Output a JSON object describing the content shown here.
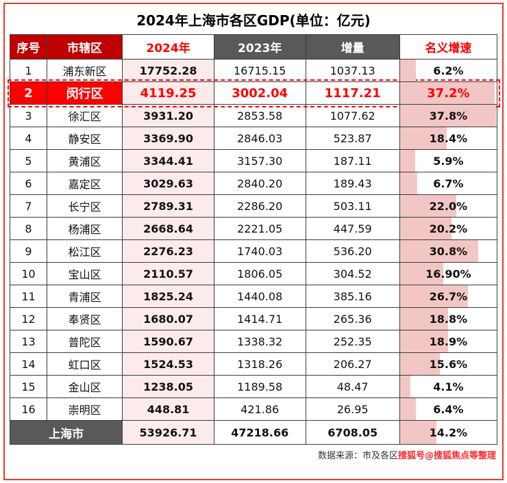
{
  "title": "2024年上海市各区GDP(单位：亿元)",
  "chart_data": {
    "type": "table",
    "title": "2024年上海市各区GDP(单位：亿元)",
    "columns": [
      "序号",
      "市辖区",
      "2024年",
      "2023年",
      "增量",
      "名义增速"
    ],
    "growth_bar_max": 38,
    "rows": [
      {
        "rank": "1",
        "district": "浦东新区",
        "gdp_2024": "17752.28",
        "gdp_2023": "16715.15",
        "delta": "1037.13",
        "growth": "6.2%",
        "growth_value": 6.2,
        "highlight": false
      },
      {
        "rank": "2",
        "district": "闵行区",
        "gdp_2024": "4119.25",
        "gdp_2023": "3002.04",
        "delta": "1117.21",
        "growth": "37.2%",
        "growth_value": 37.2,
        "highlight": true
      },
      {
        "rank": "3",
        "district": "徐汇区",
        "gdp_2024": "3931.20",
        "gdp_2023": "2853.58",
        "delta": "1077.62",
        "growth": "37.8%",
        "growth_value": 37.8,
        "highlight": false
      },
      {
        "rank": "4",
        "district": "静安区",
        "gdp_2024": "3369.90",
        "gdp_2023": "2846.03",
        "delta": "523.87",
        "growth": "18.4%",
        "growth_value": 18.4,
        "highlight": false
      },
      {
        "rank": "5",
        "district": "黄浦区",
        "gdp_2024": "3344.41",
        "gdp_2023": "3157.30",
        "delta": "187.11",
        "growth": "5.9%",
        "growth_value": 5.9,
        "highlight": false
      },
      {
        "rank": "6",
        "district": "嘉定区",
        "gdp_2024": "3029.63",
        "gdp_2023": "2840.20",
        "delta": "189.43",
        "growth": "6.7%",
        "growth_value": 6.7,
        "highlight": false
      },
      {
        "rank": "7",
        "district": "长宁区",
        "gdp_2024": "2789.31",
        "gdp_2023": "2286.20",
        "delta": "503.11",
        "growth": "22.0%",
        "growth_value": 22.0,
        "highlight": false
      },
      {
        "rank": "8",
        "district": "杨浦区",
        "gdp_2024": "2668.64",
        "gdp_2023": "2221.05",
        "delta": "447.59",
        "growth": "20.2%",
        "growth_value": 20.2,
        "highlight": false
      },
      {
        "rank": "9",
        "district": "松江区",
        "gdp_2024": "2276.23",
        "gdp_2023": "1740.03",
        "delta": "536.20",
        "growth": "30.8%",
        "growth_value": 30.8,
        "highlight": false
      },
      {
        "rank": "10",
        "district": "宝山区",
        "gdp_2024": "2110.57",
        "gdp_2023": "1806.05",
        "delta": "304.52",
        "growth": "16.90%",
        "growth_value": 16.9,
        "highlight": false
      },
      {
        "rank": "11",
        "district": "青浦区",
        "gdp_2024": "1825.24",
        "gdp_2023": "1440.08",
        "delta": "385.16",
        "growth": "26.7%",
        "growth_value": 26.7,
        "highlight": false
      },
      {
        "rank": "12",
        "district": "奉贤区",
        "gdp_2024": "1680.07",
        "gdp_2023": "1414.71",
        "delta": "265.36",
        "growth": "18.8%",
        "growth_value": 18.8,
        "highlight": false
      },
      {
        "rank": "13",
        "district": "普陀区",
        "gdp_2024": "1590.67",
        "gdp_2023": "1338.32",
        "delta": "252.35",
        "growth": "18.9%",
        "growth_value": 18.9,
        "highlight": false
      },
      {
        "rank": "14",
        "district": "虹口区",
        "gdp_2024": "1524.53",
        "gdp_2023": "1318.26",
        "delta": "206.27",
        "growth": "15.6%",
        "growth_value": 15.6,
        "highlight": false
      },
      {
        "rank": "15",
        "district": "金山区",
        "gdp_2024": "1238.05",
        "gdp_2023": "1189.58",
        "delta": "48.47",
        "growth": "4.1%",
        "growth_value": 4.1,
        "highlight": false
      },
      {
        "rank": "16",
        "district": "崇明区",
        "gdp_2024": "448.81",
        "gdp_2023": "421.86",
        "delta": "26.95",
        "growth": "6.4%",
        "growth_value": 6.4,
        "highlight": false
      }
    ],
    "total": {
      "label": "上海市",
      "gdp_2024": "53926.71",
      "gdp_2023": "47218.66",
      "delta": "6708.05",
      "growth": "14.2%",
      "growth_value": 14.2
    }
  },
  "source": {
    "label": "数据来源：市及各区",
    "watermark": "搜狐号@搜狐焦点等整理"
  },
  "colors": {
    "frame_red": "#e8392b",
    "header_red": "#c00000",
    "dark_gray": "#595959",
    "row_pink": "#fcebeb",
    "bar_pink": "#f3c6c6",
    "highlight_red": "#fe0000",
    "red_text": "#fe0000"
  }
}
